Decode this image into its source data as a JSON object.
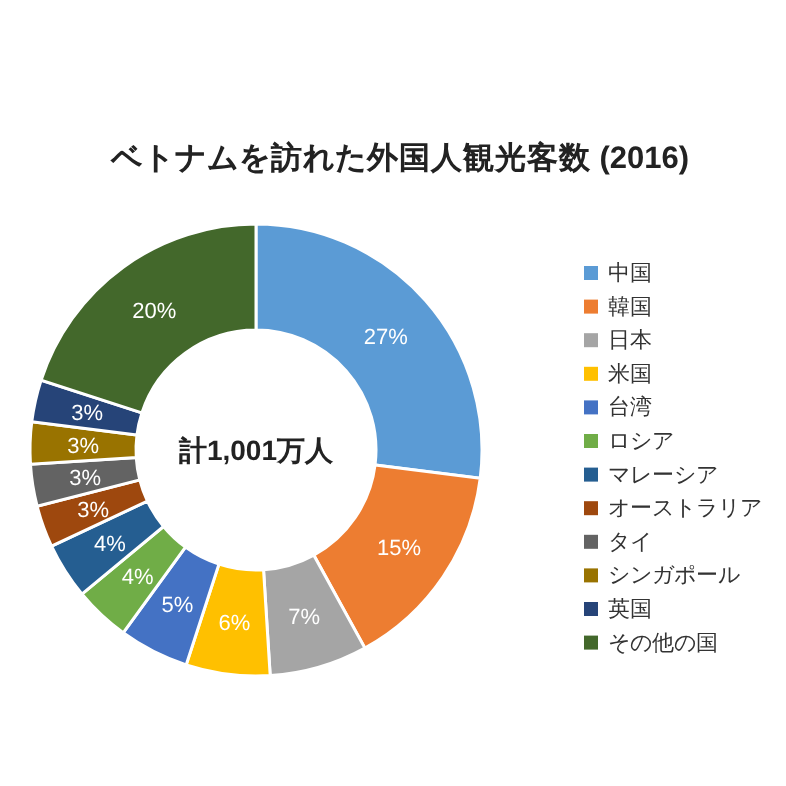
{
  "chart_data": {
    "type": "donut",
    "title": "ベトナムを訪れた外国人観光客数 (2016)",
    "categories": [
      "中国",
      "韓国",
      "日本",
      "米国",
      "台湾",
      "ロシア",
      "マレーシア",
      "オーストラリア",
      "タイ",
      "シンガポール",
      "英国",
      "その他の国"
    ],
    "values": [
      27,
      15,
      7,
      6,
      5,
      4,
      4,
      3,
      3,
      3,
      3,
      20
    ],
    "colors": [
      "#5b9bd5",
      "#ed7d31",
      "#a5a5a5",
      "#ffc000",
      "#4472c4",
      "#70ad47",
      "#255e91",
      "#9e480e",
      "#636363",
      "#997300",
      "#264478",
      "#43682b"
    ],
    "value_labels": [
      "27%",
      "15%",
      "7%",
      "6%",
      "5%",
      "4%",
      "4%",
      "3%",
      "3%",
      "3%",
      "3%",
      "20%"
    ],
    "annotations": [
      "計1,001万人"
    ],
    "legend": "right"
  }
}
